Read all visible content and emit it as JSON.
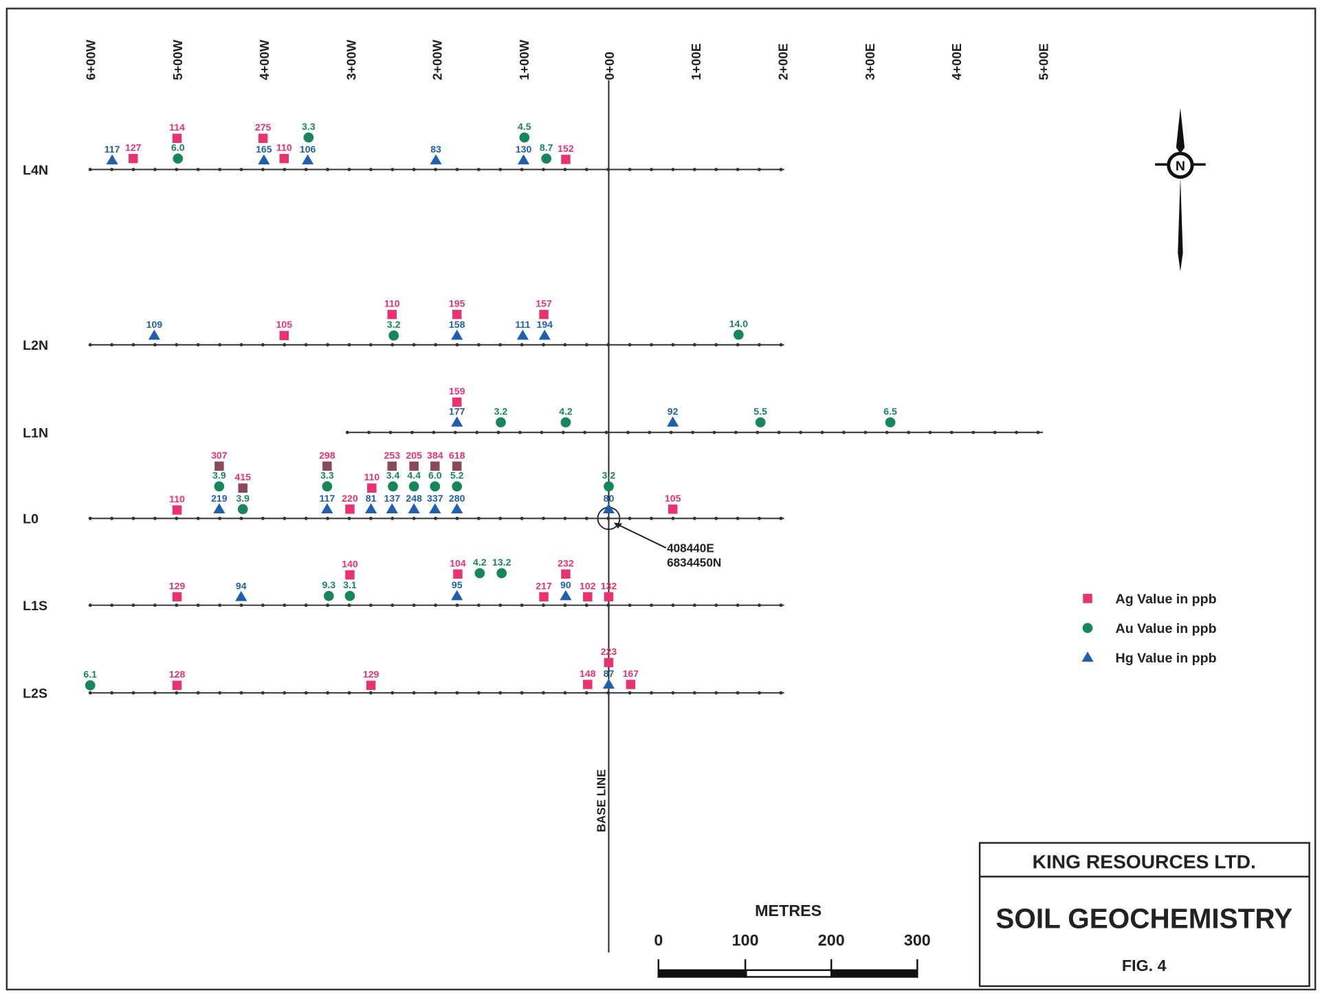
{
  "stations": [
    "6+00W",
    "5+00W",
    "4+00W",
    "3+00W",
    "2+00W",
    "1+00W",
    "0+00",
    "1+00E",
    "2+00E",
    "3+00E",
    "4+00E",
    "5+00E"
  ],
  "lines": [
    {
      "name": "L4N",
      "Ag": [
        "114",
        "127",
        "275",
        "110",
        "152"
      ],
      "Au": [
        "6.0",
        "3.3",
        "4.5",
        "8.7"
      ],
      "Hg": [
        "117",
        "165",
        "106",
        "83",
        "130"
      ]
    },
    {
      "name": "L2N",
      "Ag": [
        "110",
        "105",
        "195",
        "157"
      ],
      "Au": [
        "3.2",
        "14.0"
      ],
      "Hg": [
        "109",
        "158",
        "111",
        "194"
      ]
    },
    {
      "name": "L1N",
      "Ag": [
        "159"
      ],
      "Au": [
        "3.2",
        "4.2",
        "5.5",
        "6.5"
      ],
      "Hg": [
        "177",
        "92"
      ]
    },
    {
      "name": "L0",
      "Ag": [
        "110",
        {
          "label": "307",
          "color": "#8b4a57"
        },
        {
          "label": "415",
          "color": "#8b4a57"
        },
        {
          "label": "298",
          "color": "#8b4a57"
        },
        "220",
        "110",
        {
          "label": "253",
          "color": "#8b4a57"
        },
        {
          "label": "205",
          "color": "#8b4a57"
        },
        {
          "label": "384",
          "color": "#8b4a57"
        },
        {
          "label": "618",
          "color": "#8b4a57"
        },
        "105"
      ],
      "Au": [
        "3.9",
        "3.9",
        "3.3",
        "3.4",
        "4.4",
        "6.0",
        "5.2",
        "3.2"
      ],
      "Hg": [
        "219",
        "117",
        "81",
        "137",
        "248",
        "337",
        "280",
        "80"
      ]
    },
    {
      "name": "L1S",
      "Ag": [
        "129",
        "140",
        "104",
        "232",
        "217",
        "102",
        "132"
      ],
      "Au": [
        "9.3",
        "3.1",
        "4.2",
        "13.2"
      ],
      "Hg": [
        "94",
        "95",
        "90"
      ]
    },
    {
      "name": "L2S",
      "Ag": [
        "128",
        "129",
        "223",
        "148",
        "167"
      ],
      "Au": [
        "6.1"
      ],
      "Hg": [
        "87"
      ]
    }
  ],
  "base_line": "BASE LINE",
  "origin": {
    "easting": "408440E",
    "northing": "6834450N"
  },
  "north": "N",
  "legend": {
    "Ag": {
      "label": "Ag Value in ppb",
      "color": "#e8336e"
    },
    "Au": {
      "label": "Au Value in ppb",
      "color": "#17875a"
    },
    "Hg": {
      "label": "Hg Value in ppb",
      "color": "#1f5fae"
    }
  },
  "scale": {
    "unit": "METRES",
    "ticks": [
      "0",
      "100",
      "200",
      "300"
    ]
  },
  "title_block": {
    "company": "KING RESOURCES LTD.",
    "title": "SOIL GEOCHEMISTRY",
    "figure": "FIG. 4"
  }
}
